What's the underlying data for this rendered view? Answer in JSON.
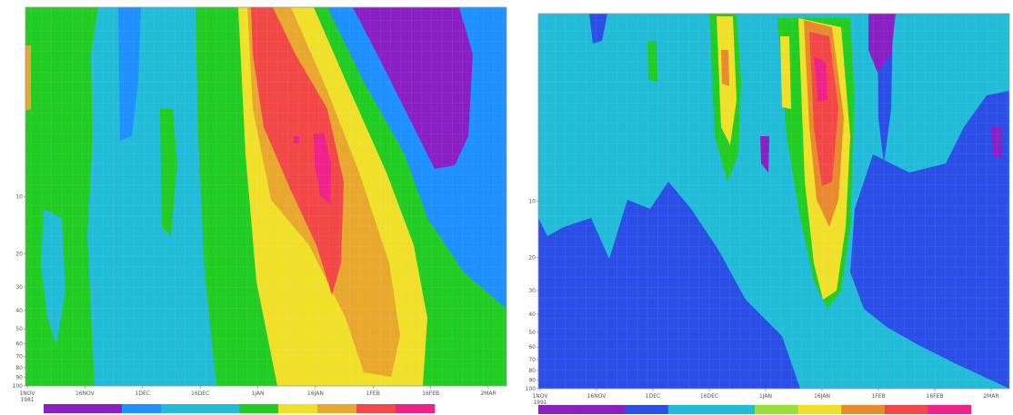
{
  "chart_data": [
    {
      "type": "heatmap",
      "title": "",
      "xlabel": "",
      "ylabel": "",
      "x_ticks": [
        "1NOV",
        "16NOV",
        "1DEC",
        "16DEC",
        "1JAN",
        "16JAN",
        "1FEB",
        "16FEB",
        "2MAR"
      ],
      "x_tick_year": "1981",
      "y_ticks": [
        "10",
        "20",
        "30",
        "40",
        "50",
        "60",
        "70",
        "80",
        "90",
        "100"
      ],
      "y_scale": "log",
      "ylim": [
        100,
        1
      ],
      "grid": true,
      "colorbar": {
        "placement": "bottom",
        "colors": [
          "#8a1fc4",
          "#8a1fc4",
          "#1e90ff",
          "#22bcd8",
          "#22bcd8",
          "#22cc22",
          "#f0e02a",
          "#e8a82e",
          "#f24848",
          "#ee2288"
        ]
      }
    },
    {
      "type": "heatmap",
      "title": "",
      "xlabel": "",
      "ylabel": "",
      "x_ticks": [
        "1NOV",
        "16NOV",
        "1DEC",
        "16DEC",
        "1JAN",
        "16JAN",
        "1FEB",
        "16FEB",
        "2MAR"
      ],
      "x_tick_year": "1991",
      "y_ticks": [
        "10",
        "20",
        "30",
        "40",
        "50",
        "60",
        "70",
        "80",
        "90",
        "100"
      ],
      "y_scale": "log",
      "ylim": [
        100,
        1
      ],
      "grid": true,
      "colorbar": {
        "placement": "bottom",
        "colors": [
          "#8a1fc4",
          "#8a1fc4",
          "#2b4fe6",
          "#22bcd8",
          "#22bcd8",
          "#9ae03a",
          "#f0e02a",
          "#e88a2e",
          "#f24848",
          "#ee2288"
        ]
      }
    }
  ],
  "colors": {
    "purple": "#8a1fc4",
    "blue": "#2b4fe6",
    "sky": "#1e90ff",
    "cyan": "#22bcd8",
    "green": "#22cc22",
    "lime": "#9ae03a",
    "yellow": "#f0e02a",
    "orange": "#e8a82e",
    "red": "#f24848",
    "magenta": "#ee2288"
  }
}
